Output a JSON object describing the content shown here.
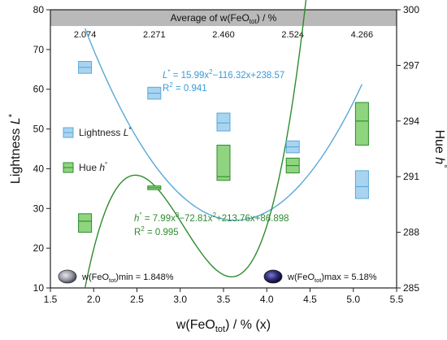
{
  "chart_data": {
    "type": "box",
    "top_band": {
      "title_prefix": "Average of w(FeO",
      "title_sub": "tot",
      "title_suffix": ") / %",
      "values": [
        "2.074",
        "2.271",
        "2.460",
        "2.524",
        "4.266"
      ]
    },
    "x_axis": {
      "label_prefix": "w(FeO",
      "label_sub": "tot",
      "label_suffix": ") / % (x)",
      "min": 1.5,
      "max": 5.5,
      "ticks": [
        "1.5",
        "2.0",
        "2.5",
        "3.0",
        "3.5",
        "4.0",
        "4.5",
        "5.0",
        "5.5"
      ]
    },
    "y_left": {
      "label": "Lightness ",
      "label_italic": "L",
      "label_sup": "*",
      "min": 10,
      "max": 80,
      "ticks": [
        "10",
        "20",
        "30",
        "40",
        "50",
        "60",
        "70",
        "80"
      ]
    },
    "y_right": {
      "label": "Hue ",
      "label_italic": "h",
      "label_sup": "°",
      "min": 285,
      "max": 300,
      "ticks": [
        "285",
        "288",
        "291",
        "294",
        "297",
        "300"
      ]
    },
    "series": [
      {
        "name_prefix": "Lightness ",
        "name_italic": "L",
        "name_sup": "*",
        "axis": "left",
        "color": "#5aa8d8",
        "fill": "#a9d4f0",
        "boxes": [
          {
            "x": 1.9,
            "q1": 64.0,
            "median": 65.5,
            "q3": 67.0
          },
          {
            "x": 2.7,
            "q1": 57.5,
            "median": 59.0,
            "q3": 60.5
          },
          {
            "x": 3.5,
            "q1": 49.5,
            "median": 51.5,
            "q3": 54.0
          },
          {
            "x": 4.3,
            "q1": 44.0,
            "median": 45.5,
            "q3": 47.0
          },
          {
            "x": 5.1,
            "q1": 32.5,
            "median": 35.5,
            "q3": 39.5
          }
        ],
        "fit": {
          "a": 15.99,
          "b": -116.32,
          "c": 238.57
        },
        "equation": {
          "lhs": "L",
          "lhs_sup": "*",
          "rhs_pre": " = 15.99x",
          "rhs_sup": "2",
          "rhs_post": "−116.32x+238.57"
        },
        "r2": {
          "prefix": "R",
          "sup": "2",
          "suffix": " = 0.941"
        }
      },
      {
        "name_prefix": "Hue ",
        "name_italic": "h",
        "name_sup": "°",
        "axis": "right",
        "color": "#2e8b2e",
        "fill": "#8fd47f",
        "boxes": [
          {
            "x": 1.9,
            "q1": 288.0,
            "median": 288.6,
            "q3": 289.0
          },
          {
            "x": 2.7,
            "q1": 290.3,
            "median": 290.4,
            "q3": 290.5
          },
          {
            "x": 3.5,
            "q1": 290.8,
            "median": 291.0,
            "q3": 292.7
          },
          {
            "x": 4.3,
            "q1": 291.2,
            "median": 291.6,
            "q3": 292.0
          },
          {
            "x": 5.1,
            "q1": 292.7,
            "median": 294.0,
            "q3": 295.0
          }
        ],
        "fit": {
          "a": 7.99,
          "b": -72.81,
          "c": 213.76,
          "d": 86.898
        },
        "equation": {
          "lhs": "h",
          "lhs_sup": "°",
          "rhs_pre": " = 7.99x",
          "rhs_sup": "3",
          "rhs_mid": "−72.81x",
          "rhs_sup2": "2",
          "rhs_post": "+213.76x+86.898"
        },
        "r2": {
          "prefix": "R",
          "sup": "2",
          "suffix": " = 0.995"
        }
      }
    ],
    "annotations": {
      "min_label": {
        "prefix": "w(FeO",
        "sub": "tot",
        "suffix": ")min = 1.848%"
      },
      "max_label": {
        "prefix": "w(FeO",
        "sub": "tot",
        "suffix": ")max = 5.18%"
      }
    },
    "gem_colors": {
      "min": "#9a9aa6",
      "max": "#2a2870"
    },
    "band_color": "#b9b9b9"
  }
}
